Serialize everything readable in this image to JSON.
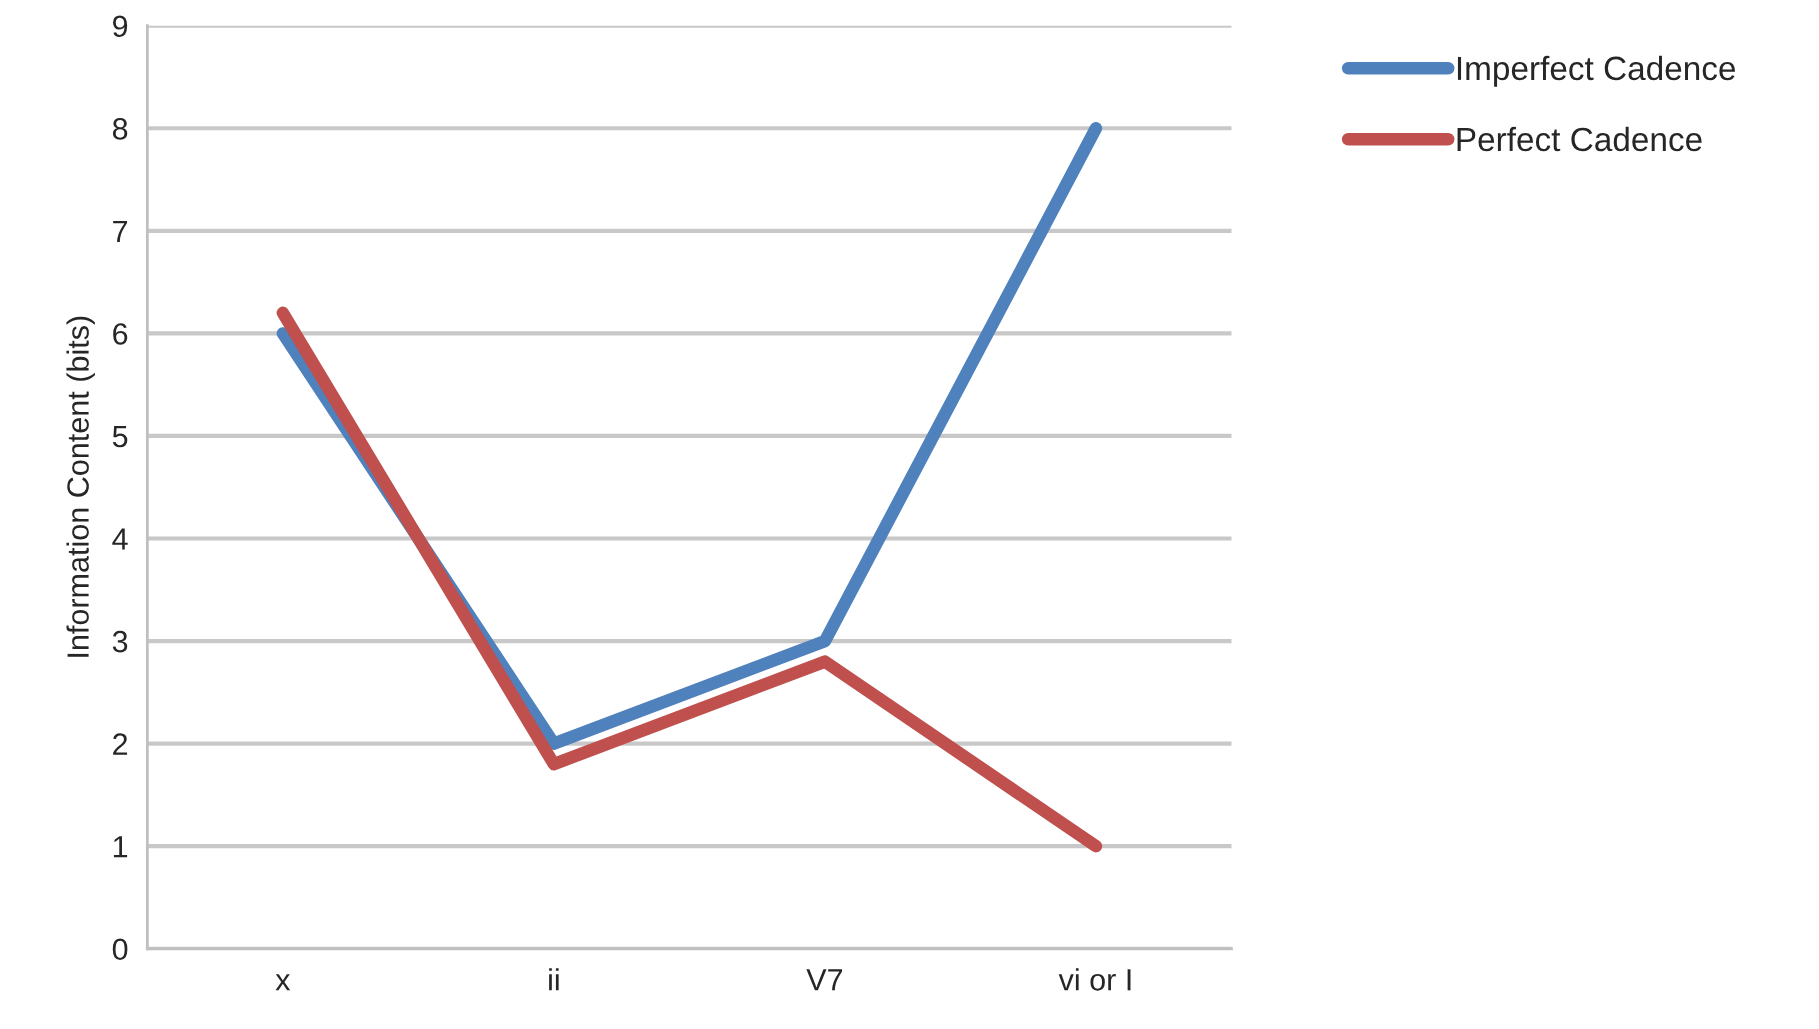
{
  "chart_data": {
    "type": "line",
    "ylabel": "Information Content (bits)",
    "categories": [
      "x",
      "ii",
      "V7",
      "vi or I"
    ],
    "series": [
      {
        "name": "Imperfect Cadence",
        "color": "#4f81bd",
        "values": [
          6,
          2,
          3,
          8
        ]
      },
      {
        "name": "Perfect Cadence",
        "color": "#c0504d",
        "values": [
          6.2,
          1.8,
          2.8,
          1
        ]
      }
    ],
    "ylim": [
      0,
      9
    ],
    "yticks": [
      0,
      1,
      2,
      3,
      4,
      5,
      6,
      7,
      8,
      9
    ],
    "grid": "y",
    "legend": "top right",
    "marker": "none",
    "line_style": "solid"
  }
}
